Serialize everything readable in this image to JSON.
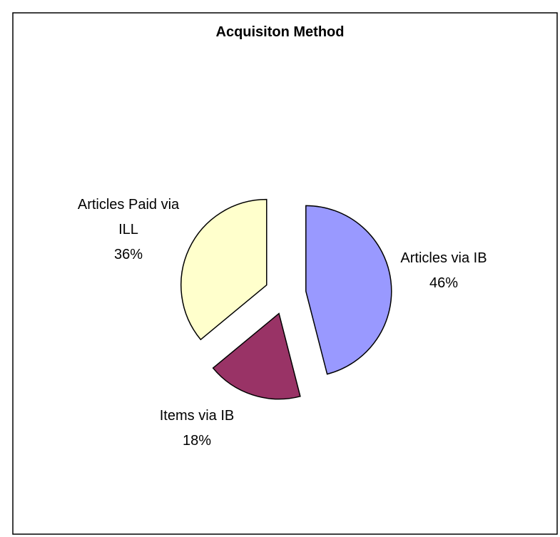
{
  "chart_data": {
    "type": "pie",
    "title": "Acquisiton Method",
    "categories": [
      "Articles via IB",
      "Items via IB",
      "Articles Paid via ILL"
    ],
    "values": [
      46,
      18,
      36
    ],
    "value_labels": [
      "46%",
      "18%",
      "36%"
    ],
    "colors": [
      "#9999ff",
      "#993366",
      "#ffffcc"
    ]
  }
}
